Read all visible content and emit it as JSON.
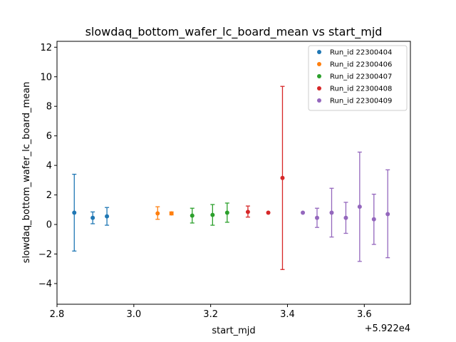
{
  "chart_data": {
    "type": "scatter",
    "title": "slowdaq_bottom_wafer_lc_board_mean vs start_mjd",
    "xlabel": "start_mjd",
    "ylabel": "slowdaq_bottom_wafer_lc_board_mean",
    "x_offset_label": "+5.922e4",
    "xlim": [
      2.8,
      3.72
    ],
    "ylim": [
      -5.4,
      12.4
    ],
    "x_ticks": [
      2.8,
      3.0,
      3.2,
      3.4,
      3.6
    ],
    "x_tick_labels": [
      "2.8",
      "3.0",
      "3.2",
      "3.4",
      "3.6"
    ],
    "y_ticks": [
      -4,
      -2,
      0,
      2,
      4,
      6,
      8,
      10,
      12
    ],
    "y_tick_labels": [
      "−4",
      "−2",
      "0",
      "2",
      "4",
      "6",
      "8",
      "10",
      "12"
    ],
    "legend_position": "top-right",
    "series": [
      {
        "name": "Run_id 22300404",
        "color": "#1f77b4",
        "points": [
          {
            "x": 2.845,
            "y": 0.8,
            "ylow": -1.8,
            "yhigh": 3.4
          },
          {
            "x": 2.893,
            "y": 0.45,
            "ylow": 0.05,
            "yhigh": 0.85
          },
          {
            "x": 2.93,
            "y": 0.55,
            "ylow": -0.05,
            "yhigh": 1.15
          }
        ]
      },
      {
        "name": "Run_id 22300406",
        "color": "#ff7f0e",
        "points": [
          {
            "x": 3.062,
            "y": 0.75,
            "ylow": 0.35,
            "yhigh": 1.2
          },
          {
            "x": 3.098,
            "y": 0.75,
            "ylow": 0.65,
            "yhigh": 0.85
          }
        ]
      },
      {
        "name": "Run_id 22300407",
        "color": "#2ca02c",
        "points": [
          {
            "x": 3.152,
            "y": 0.6,
            "ylow": 0.1,
            "yhigh": 1.1
          },
          {
            "x": 3.205,
            "y": 0.65,
            "ylow": -0.05,
            "yhigh": 1.35
          },
          {
            "x": 3.243,
            "y": 0.8,
            "ylow": 0.15,
            "yhigh": 1.45
          }
        ]
      },
      {
        "name": "Run_id 22300408",
        "color": "#d62728",
        "points": [
          {
            "x": 3.297,
            "y": 0.85,
            "ylow": 0.5,
            "yhigh": 1.25
          },
          {
            "x": 3.35,
            "y": 0.8,
            "ylow": 0.8,
            "yhigh": 0.8
          },
          {
            "x": 3.387,
            "y": 3.15,
            "ylow": -3.05,
            "yhigh": 9.35
          }
        ]
      },
      {
        "name": "Run_id 22300409",
        "color": "#9467bd",
        "points": [
          {
            "x": 3.44,
            "y": 0.8,
            "ylow": 0.8,
            "yhigh": 0.8
          },
          {
            "x": 3.477,
            "y": 0.45,
            "ylow": -0.2,
            "yhigh": 1.1
          },
          {
            "x": 3.515,
            "y": 0.8,
            "ylow": -0.85,
            "yhigh": 2.45
          },
          {
            "x": 3.552,
            "y": 0.45,
            "ylow": -0.6,
            "yhigh": 1.5
          },
          {
            "x": 3.588,
            "y": 1.2,
            "ylow": -2.5,
            "yhigh": 4.9
          },
          {
            "x": 3.625,
            "y": 0.35,
            "ylow": -1.35,
            "yhigh": 2.05
          },
          {
            "x": 3.661,
            "y": 0.7,
            "ylow": -2.25,
            "yhigh": 3.7
          }
        ]
      }
    ]
  }
}
